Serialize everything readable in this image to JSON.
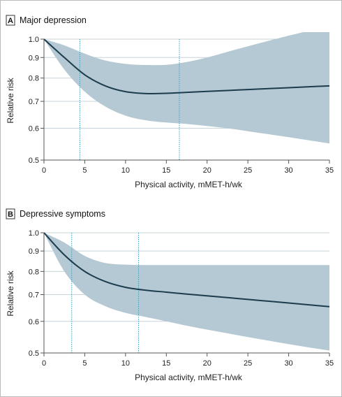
{
  "chart_data": [
    {
      "type": "line",
      "panel_letter": "A",
      "title": "Major depression",
      "xlabel": "Physical activity, mMET-h/wk",
      "ylabel": "Relative risk",
      "xlim": [
        0,
        35
      ],
      "ylim": [
        0.5,
        1.0
      ],
      "yscale": "log",
      "x_ticks": [
        0,
        5,
        10,
        15,
        20,
        25,
        30,
        35
      ],
      "y_ticks": [
        0.5,
        0.6,
        0.7,
        0.8,
        0.9,
        1.0
      ],
      "y_tick_labels": [
        "0.5",
        "0.6",
        "0.7",
        "0.8",
        "0.9",
        "1.0"
      ],
      "grid": "horizontal",
      "reference_lines_x": [
        4.4,
        16.6
      ],
      "x": [
        0,
        2.5,
        5,
        7.5,
        10,
        12.5,
        15,
        17.5,
        20,
        22.5,
        25,
        27.5,
        30,
        32.5,
        35
      ],
      "estimate": [
        1.0,
        0.9,
        0.815,
        0.765,
        0.74,
        0.732,
        0.733,
        0.737,
        0.741,
        0.745,
        0.749,
        0.753,
        0.757,
        0.761,
        0.765
      ],
      "lower": [
        1.0,
        0.84,
        0.74,
        0.68,
        0.645,
        0.628,
        0.62,
        0.615,
        0.608,
        0.6,
        0.59,
        0.58,
        0.57,
        0.56,
        0.55
      ],
      "upper": [
        1.0,
        0.965,
        0.92,
        0.885,
        0.868,
        0.862,
        0.863,
        0.877,
        0.9,
        0.93,
        0.96,
        0.99,
        1.02,
        1.05,
        1.09
      ]
    },
    {
      "type": "line",
      "panel_letter": "B",
      "title": "Depressive symptoms",
      "xlabel": "Physical activity, mMET-h/wk",
      "ylabel": "Relative risk",
      "xlim": [
        0,
        35
      ],
      "ylim": [
        0.5,
        1.0
      ],
      "yscale": "log",
      "x_ticks": [
        0,
        5,
        10,
        15,
        20,
        25,
        30,
        35
      ],
      "y_ticks": [
        0.5,
        0.6,
        0.7,
        0.8,
        0.9,
        1.0
      ],
      "y_tick_labels": [
        "0.5",
        "0.6",
        "0.7",
        "0.8",
        "0.9",
        "1.0"
      ],
      "grid": "horizontal",
      "reference_lines_x": [
        3.4,
        11.6
      ],
      "x": [
        0,
        2.5,
        5,
        7.5,
        10,
        12.5,
        15,
        17.5,
        20,
        22.5,
        25,
        27.5,
        30,
        32.5,
        35
      ],
      "estimate": [
        1.0,
        0.88,
        0.8,
        0.755,
        0.73,
        0.718,
        0.71,
        0.702,
        0.695,
        0.688,
        0.681,
        0.674,
        0.667,
        0.66,
        0.653
      ],
      "lower": [
        1.0,
        0.8,
        0.7,
        0.655,
        0.63,
        0.615,
        0.6,
        0.585,
        0.572,
        0.56,
        0.548,
        0.537,
        0.526,
        0.516,
        0.507
      ],
      "upper": [
        1.0,
        0.945,
        0.875,
        0.84,
        0.832,
        0.83,
        0.83,
        0.83,
        0.83,
        0.83,
        0.83,
        0.83,
        0.83,
        0.83,
        0.83
      ]
    }
  ],
  "colors": {
    "band": "#b4c9d3",
    "line": "#1c3c4e",
    "reference_line": "#3a9fc4",
    "grid": "#c8d4da",
    "axis": "#555555",
    "frame": "#bbbbbb"
  }
}
